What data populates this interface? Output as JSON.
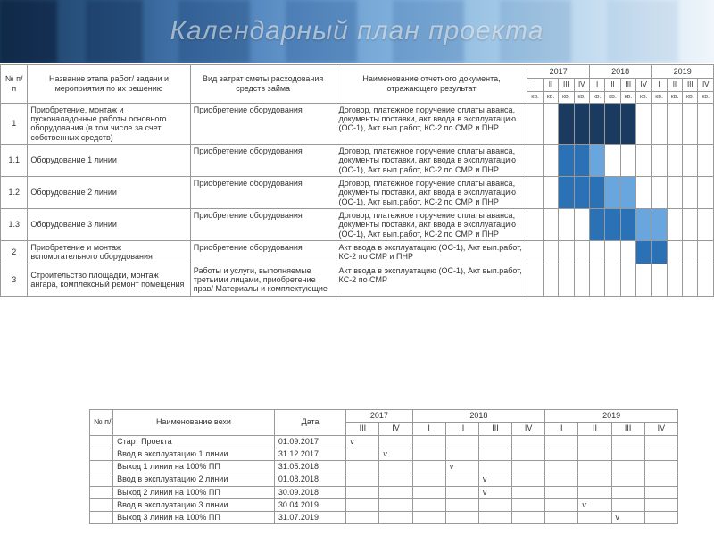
{
  "title": "Календарный план проекта",
  "main_headers": {
    "num": "№ п/п",
    "name": "Название этапа работ/ задачи и мероприятия по их решению",
    "cost": "Вид затрат сметы расходования средств займа",
    "doc": "Наименование отчетного документа, отражающего результат",
    "years": [
      "2017",
      "2018",
      "2019"
    ],
    "quarters": [
      "I",
      "II",
      "III",
      "IV"
    ],
    "kv": "кв."
  },
  "doc_long": "Договор, платежное поручение оплаты аванса, документы поставки, акт ввода в эксплуатацию (ОС-1), Акт вып.работ, КС-2 по СМР и ПНР",
  "doc_short": "Акт ввода в эксплуатацию (ОС-1), Акт вып.работ, КС-2 по СМР и ПНР",
  "doc_short2": "Акт ввода в эксплуатацию (ОС-1), Акт вып.работ, КС-2 по СМР",
  "cost_eq": "Приобретение оборудования",
  "cost_works": "Работы и услуги, выполняемые третьими лицами, приобретение прав/ Материалы и комплектующие",
  "rows": [
    {
      "num": "1",
      "name": "Приобретение, монтаж и пусконаладочные работы основного оборудования (в том числе за счет собственных средств)",
      "bars": [
        [
          "dark",
          2,
          5
        ]
      ]
    },
    {
      "num": "1.1",
      "name": "Оборудование 1 линии",
      "bars": [
        [
          "mid",
          2,
          2
        ],
        [
          "light",
          4,
          1
        ]
      ]
    },
    {
      "num": "1.2",
      "name": "Оборудование 2 линии",
      "bars": [
        [
          "mid",
          2,
          3
        ],
        [
          "light",
          5,
          2
        ]
      ]
    },
    {
      "num": "1.3",
      "name": "Оборудование 3 линии",
      "bars": [
        [
          "mid",
          4,
          3
        ],
        [
          "light",
          7,
          2
        ]
      ]
    },
    {
      "num": "2",
      "name": "Приобретение и монтаж вспомогательного оборудования",
      "bars": [
        [
          "mid",
          7,
          2
        ]
      ]
    },
    {
      "num": "3",
      "name": "Строительство площадки, монтаж ангара, комплексный ремонт помещения",
      "bars": []
    }
  ],
  "ms_headers": {
    "num": "№ п/п",
    "name": "Наименование вехи",
    "date": "Дата",
    "years": [
      "2017",
      "2018",
      "2019"
    ],
    "quarters_2017": [
      "III",
      "IV"
    ],
    "quarters": [
      "I",
      "II",
      "III",
      "IV"
    ]
  },
  "milestones": [
    {
      "name": "Старт Проекта",
      "date": "01.09.2017",
      "col": 0
    },
    {
      "name": "Ввод в эксплуатацию 1 линии",
      "date": "31.12.2017",
      "col": 1
    },
    {
      "name": "Выход 1 линии на 100% ПП",
      "date": "31.05.2018",
      "col": 3
    },
    {
      "name": "Ввод в эксплуатацию 2 линии",
      "date": "01.08.2018",
      "col": 4
    },
    {
      "name": "Выход 2 линии на 100% ПП",
      "date": "30.09.2018",
      "col": 4
    },
    {
      "name": "Ввод в эксплуатацию 3 линии",
      "date": "30.04.2019",
      "col": 7
    },
    {
      "name": "Выход 3 линии на 100% ПП",
      "date": "31.07.2019",
      "col": 8
    }
  ],
  "colors": {
    "dark": "#1b3a5f",
    "mid": "#2a72b5",
    "light": "#6aa6de"
  }
}
